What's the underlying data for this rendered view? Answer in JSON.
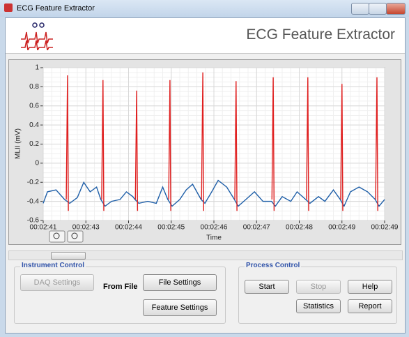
{
  "window": {
    "title": "ECG Feature Extractor"
  },
  "header": {
    "title": "ECG Feature Extractor"
  },
  "chart_data": {
    "type": "line",
    "ylabel": "MLII (mV)",
    "xlabel": "Time",
    "xlim": [
      0,
      8
    ],
    "ylim": [
      -0.6,
      1
    ],
    "xticks": [
      {
        "value": 0,
        "label": "00:02:41"
      },
      {
        "value": 1,
        "label": "00:02:43"
      },
      {
        "value": 2,
        "label": "00:02:44"
      },
      {
        "value": 3,
        "label": "00:02:45"
      },
      {
        "value": 4,
        "label": "00:02:46"
      },
      {
        "value": 5,
        "label": "00:02:47"
      },
      {
        "value": 6,
        "label": "00:02:48"
      },
      {
        "value": 7,
        "label": "00:02:49"
      },
      {
        "value": 8,
        "label": "00:02:49"
      }
    ],
    "yticks": [
      -0.6,
      -0.4,
      -0.2,
      0,
      0.2,
      0.4,
      0.6,
      0.8,
      1
    ],
    "grid": true,
    "series": [
      {
        "color": "#1f5fa8",
        "x": [
          0,
          0.1,
          0.3,
          0.5,
          0.62,
          0.8,
          0.95,
          1.1,
          1.25,
          1.35,
          1.45,
          1.6,
          1.8,
          1.95,
          2.1,
          2.15,
          2.24,
          2.45,
          2.65,
          2.8,
          2.92,
          3.02,
          3.2,
          3.35,
          3.5,
          3.7,
          3.79,
          3.95,
          4.1,
          4.3,
          4.48,
          4.57,
          4.75,
          4.95,
          5.15,
          5.35,
          5.44,
          5.6,
          5.8,
          5.95,
          6.15,
          6.25,
          6.45,
          6.6,
          6.8,
          6.96,
          7.05,
          7.2,
          7.4,
          7.6,
          7.78,
          7.87,
          8
        ],
        "values": [
          -0.42,
          -0.3,
          -0.28,
          -0.38,
          -0.42,
          -0.36,
          -0.2,
          -0.3,
          -0.25,
          -0.38,
          -0.45,
          -0.4,
          -0.38,
          -0.3,
          -0.35,
          -0.38,
          -0.42,
          -0.4,
          -0.42,
          -0.25,
          -0.38,
          -0.45,
          -0.38,
          -0.28,
          -0.22,
          -0.38,
          -0.42,
          -0.3,
          -0.18,
          -0.25,
          -0.38,
          -0.45,
          -0.38,
          -0.3,
          -0.4,
          -0.4,
          -0.45,
          -0.35,
          -0.4,
          -0.3,
          -0.38,
          -0.42,
          -0.35,
          -0.4,
          -0.28,
          -0.38,
          -0.45,
          -0.3,
          -0.25,
          -0.3,
          -0.38,
          -0.45,
          -0.38
        ]
      },
      {
        "color": "#e02020",
        "x": [
          0.54,
          0.57,
          0.59,
          0.67,
          1.37,
          1.4,
          1.42,
          1.5,
          2.16,
          2.19,
          2.21,
          2.29,
          2.94,
          2.97,
          2.99,
          3.07,
          3.71,
          3.74,
          3.76,
          3.84,
          4.49,
          4.52,
          4.54,
          4.62,
          5.36,
          5.39,
          5.41,
          5.49,
          6.17,
          6.2,
          6.22,
          6.3,
          6.97,
          7,
          7.02,
          7.1,
          7.79,
          7.82,
          7.84
        ],
        "values": [
          -0.38,
          0.92,
          -0.5,
          null,
          -0.38,
          0.87,
          -0.5,
          null,
          -0.38,
          0.76,
          -0.5,
          null,
          -0.38,
          0.87,
          -0.5,
          null,
          -0.38,
          0.95,
          -0.5,
          null,
          -0.38,
          0.86,
          -0.5,
          null,
          -0.38,
          0.9,
          -0.5,
          null,
          -0.38,
          0.9,
          -0.5,
          null,
          -0.38,
          0.83,
          -0.5,
          null,
          -0.38,
          0.9,
          -0.5
        ]
      }
    ]
  },
  "instrument_control": {
    "title": "Instrument Control",
    "daq": "DAQ Settings",
    "source": "From File",
    "file": "File Settings",
    "feature": "Feature Settings"
  },
  "process_control": {
    "title": "Process Control",
    "start": "Start",
    "stop": "Stop",
    "help": "Help",
    "statistics": "Statistics",
    "report": "Report"
  }
}
